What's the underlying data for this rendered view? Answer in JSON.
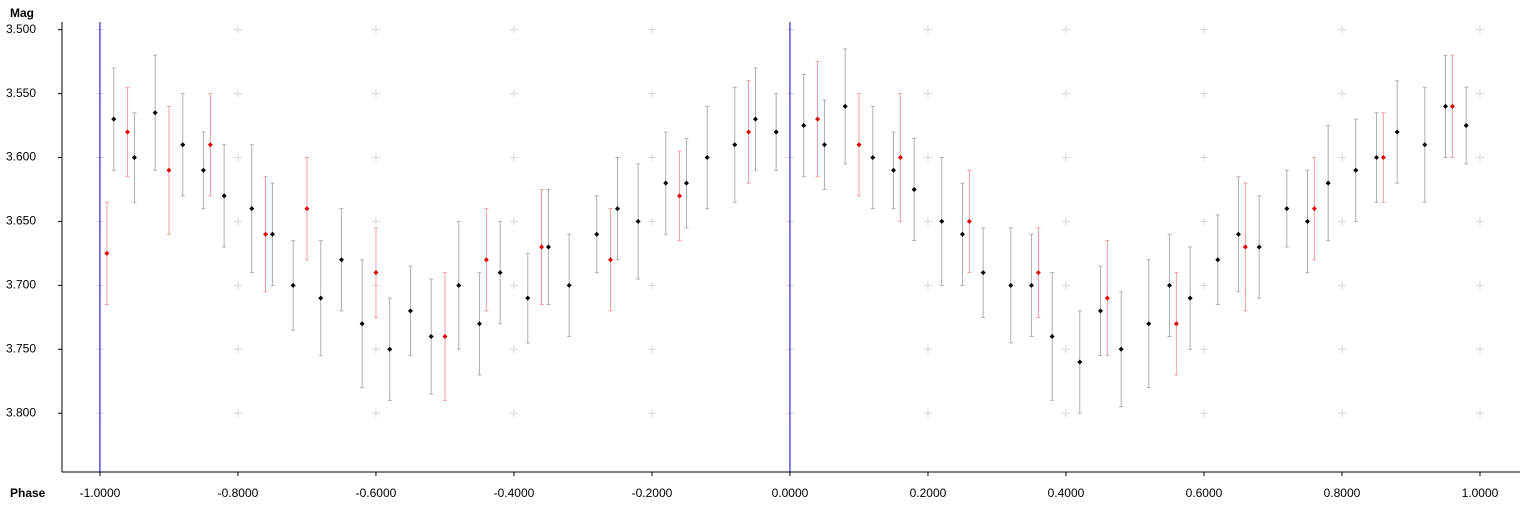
{
  "chart_data": {
    "type": "errorbar-scatter",
    "y_axis_label": "Mag",
    "x_axis_label": "Phase",
    "xlim": [
      -1.055,
      1.058
    ],
    "ylim": [
      3.494,
      3.846
    ],
    "y_inverted": true,
    "xticks": [
      {
        "value": -1.0,
        "label": "-1.0000"
      },
      {
        "value": -0.8,
        "label": "-0.8000"
      },
      {
        "value": -0.6,
        "label": "-0.6000"
      },
      {
        "value": -0.4,
        "label": "-0.4000"
      },
      {
        "value": -0.2,
        "label": "-0.2000"
      },
      {
        "value": 0.0,
        "label": "0.0000"
      },
      {
        "value": 0.2,
        "label": "0.2000"
      },
      {
        "value": 0.4,
        "label": "0.4000"
      },
      {
        "value": 0.6,
        "label": "0.6000"
      },
      {
        "value": 0.8,
        "label": "0.8000"
      },
      {
        "value": 1.0,
        "label": "1.0000"
      }
    ],
    "yticks": [
      {
        "value": 3.5,
        "label": "3.500"
      },
      {
        "value": 3.55,
        "label": "3.550"
      },
      {
        "value": 3.6,
        "label": "3.600"
      },
      {
        "value": 3.65,
        "label": "3.650"
      },
      {
        "value": 3.7,
        "label": "3.700"
      },
      {
        "value": 3.75,
        "label": "3.750"
      },
      {
        "value": 3.8,
        "label": "3.800"
      }
    ],
    "grid": "crosses",
    "markers": {
      "color": "#0000cc",
      "x": [
        -1.0,
        0.0
      ]
    },
    "series": [
      {
        "color": "#000000",
        "error_color": "#b0b0b0",
        "x": [
          -0.98,
          -0.95,
          -0.92,
          -0.88,
          -0.85,
          -0.82,
          -0.78,
          -0.75,
          -0.72,
          -0.68,
          -0.65,
          -0.62,
          -0.58,
          -0.55,
          -0.52,
          -0.48,
          -0.45,
          -0.42,
          -0.38,
          -0.35,
          -0.32,
          -0.28,
          -0.25,
          -0.22,
          -0.18,
          -0.15,
          -0.12,
          -0.08,
          -0.05,
          -0.02,
          0.02,
          0.05,
          0.08,
          0.12,
          0.15,
          0.18,
          0.22,
          0.25,
          0.28,
          0.32,
          0.35,
          0.38,
          0.42,
          0.45,
          0.48,
          0.52,
          0.55,
          0.58,
          0.62,
          0.65,
          0.68,
          0.72,
          0.75,
          0.78,
          0.82,
          0.85,
          0.88,
          0.92,
          0.95,
          0.98
        ],
        "values": [
          3.57,
          3.6,
          3.565,
          3.59,
          3.61,
          3.63,
          3.64,
          3.66,
          3.7,
          3.71,
          3.68,
          3.73,
          3.75,
          3.72,
          3.74,
          3.7,
          3.73,
          3.69,
          3.71,
          3.67,
          3.7,
          3.66,
          3.64,
          3.65,
          3.62,
          3.62,
          3.6,
          3.59,
          3.57,
          3.58,
          3.575,
          3.59,
          3.56,
          3.6,
          3.61,
          3.625,
          3.65,
          3.66,
          3.69,
          3.7,
          3.7,
          3.74,
          3.76,
          3.72,
          3.75,
          3.73,
          3.7,
          3.71,
          3.68,
          3.66,
          3.67,
          3.64,
          3.65,
          3.62,
          3.61,
          3.6,
          3.58,
          3.59,
          3.56,
          3.575
        ],
        "errors": [
          0.04,
          0.035,
          0.045,
          0.04,
          0.03,
          0.04,
          0.05,
          0.04,
          0.035,
          0.045,
          0.04,
          0.05,
          0.04,
          0.035,
          0.045,
          0.05,
          0.04,
          0.04,
          0.035,
          0.045,
          0.04,
          0.03,
          0.04,
          0.045,
          0.04,
          0.035,
          0.04,
          0.045,
          0.04,
          0.03,
          0.04,
          0.035,
          0.045,
          0.04,
          0.03,
          0.04,
          0.05,
          0.04,
          0.035,
          0.045,
          0.04,
          0.05,
          0.04,
          0.035,
          0.045,
          0.05,
          0.04,
          0.04,
          0.035,
          0.045,
          0.04,
          0.03,
          0.04,
          0.045,
          0.04,
          0.035,
          0.04,
          0.045,
          0.04,
          0.03
        ]
      },
      {
        "color": "#e00000",
        "error_color": "#f0a0a0",
        "x": [
          -0.99,
          -0.96,
          -0.9,
          -0.84,
          -0.76,
          -0.7,
          -0.6,
          -0.5,
          -0.44,
          -0.36,
          -0.26,
          -0.16,
          -0.06,
          0.04,
          0.1,
          0.16,
          0.26,
          0.36,
          0.46,
          0.56,
          0.66,
          0.76,
          0.86,
          0.96
        ],
        "values": [
          3.675,
          3.58,
          3.61,
          3.59,
          3.66,
          3.64,
          3.69,
          3.74,
          3.68,
          3.67,
          3.68,
          3.63,
          3.58,
          3.57,
          3.59,
          3.6,
          3.65,
          3.69,
          3.71,
          3.73,
          3.67,
          3.64,
          3.6,
          3.56
        ],
        "errors": [
          0.04,
          0.035,
          0.05,
          0.04,
          0.045,
          0.04,
          0.035,
          0.05,
          0.04,
          0.045,
          0.04,
          0.035,
          0.04,
          0.045,
          0.04,
          0.05,
          0.04,
          0.035,
          0.045,
          0.04,
          0.05,
          0.04,
          0.035,
          0.04
        ]
      }
    ]
  }
}
